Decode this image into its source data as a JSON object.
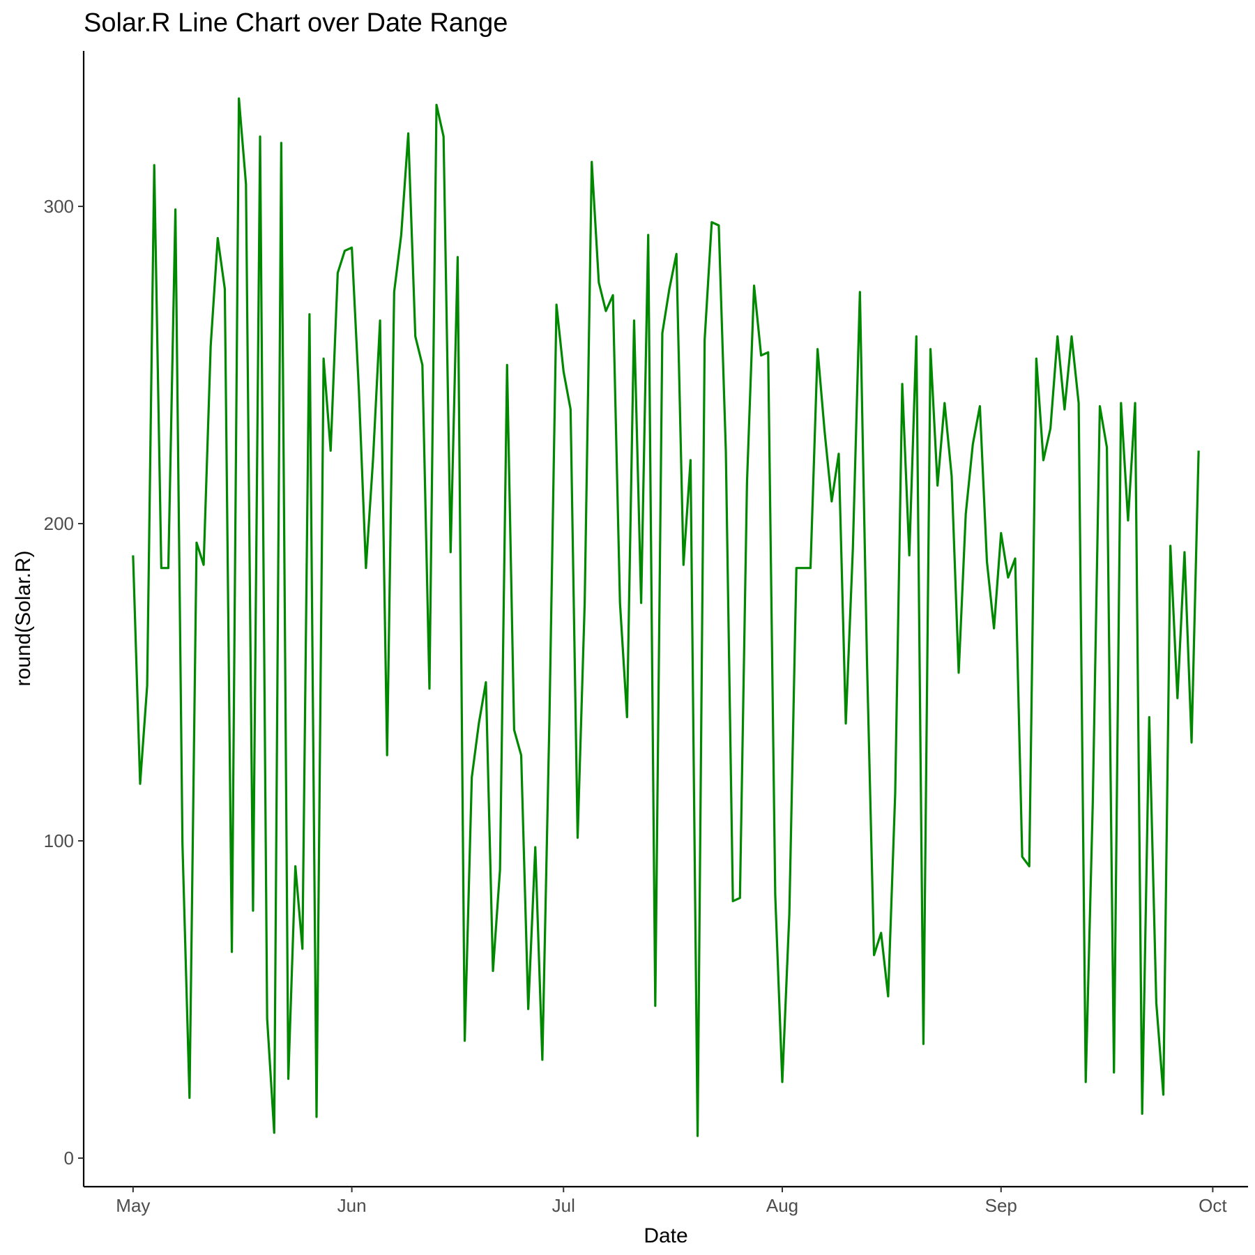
{
  "chart_data": {
    "type": "line",
    "title": "Solar.R Line Chart over Date Range",
    "xlabel": "Date",
    "ylabel": "round(Solar.R)",
    "x_range": [
      "1973-04-24",
      "1973-10-06"
    ],
    "ylim": [
      -9,
      349
    ],
    "x_ticks": [
      {
        "date": "1973-05-01",
        "label": "May"
      },
      {
        "date": "1973-06-01",
        "label": "Jun"
      },
      {
        "date": "1973-07-01",
        "label": "Jul"
      },
      {
        "date": "1973-08-01",
        "label": "Aug"
      },
      {
        "date": "1973-09-01",
        "label": "Sep"
      },
      {
        "date": "1973-10-01",
        "label": "Oct"
      }
    ],
    "y_ticks": [
      {
        "value": 0,
        "label": "0"
      },
      {
        "value": 100,
        "label": "100"
      },
      {
        "value": 200,
        "label": "200"
      },
      {
        "value": 300,
        "label": "300"
      }
    ],
    "grid": false,
    "series": [
      {
        "color": "#008800",
        "start_date": "1973-05-01",
        "values": [
          190,
          118,
          149,
          313,
          186,
          186,
          299,
          99,
          19,
          194,
          187,
          256,
          290,
          274,
          65,
          334,
          307,
          78,
          322,
          44,
          8,
          320,
          25,
          92,
          66,
          266,
          13,
          252,
          223,
          279,
          286,
          287,
          242,
          186,
          220,
          264,
          127,
          273,
          291,
          323,
          259,
          250,
          148,
          332,
          322,
          191,
          284,
          37,
          120,
          137,
          150,
          59,
          91,
          250,
          135,
          127,
          47,
          98,
          31,
          138,
          269,
          248,
          236,
          101,
          175,
          314,
          276,
          267,
          272,
          175,
          139,
          264,
          175,
          291,
          48,
          260,
          274,
          285,
          187,
          220,
          7,
          258,
          295,
          294,
          223,
          81,
          82,
          213,
          275,
          253,
          254,
          83,
          24,
          77,
          186,
          186,
          186,
          255,
          229,
          207,
          222,
          137,
          192,
          273,
          157,
          64,
          71,
          51,
          115,
          244,
          190,
          259,
          36,
          255,
          212,
          238,
          215,
          153,
          203,
          225,
          237,
          188,
          167,
          197,
          183,
          189,
          95,
          92,
          252,
          220,
          230,
          259,
          236,
          259,
          238,
          24,
          112,
          237,
          224,
          27,
          238,
          201,
          238,
          14,
          139,
          49,
          20,
          193,
          145,
          191,
          131,
          223
        ]
      }
    ]
  }
}
